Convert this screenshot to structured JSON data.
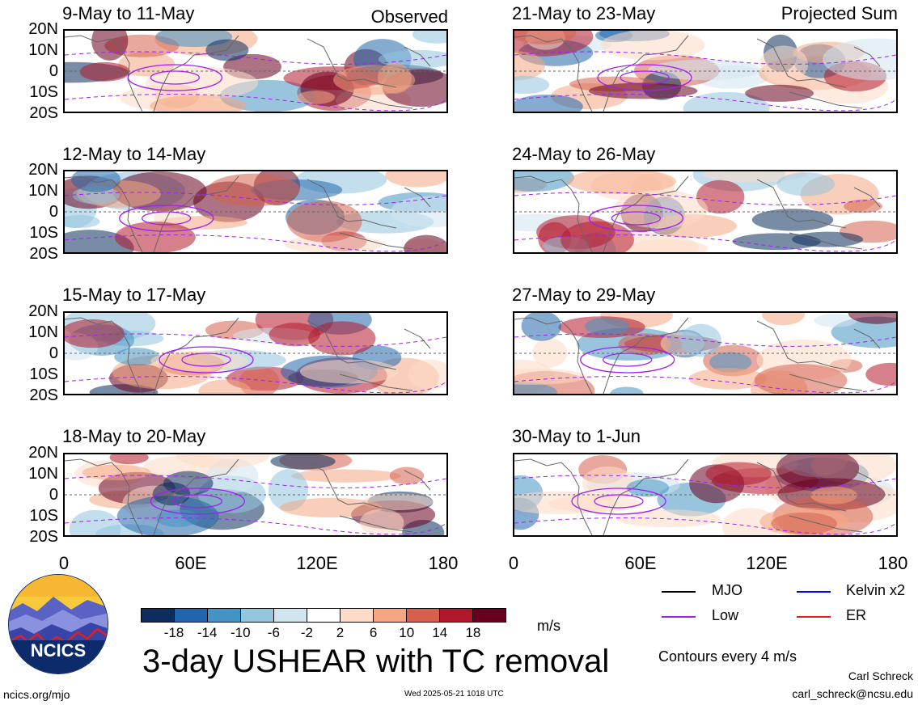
{
  "panels": [
    {
      "title": "9-May to 11-May",
      "tag": "Observed"
    },
    {
      "title": "21-May to 23-May",
      "tag": "Projected Sum"
    },
    {
      "title": "12-May to 14-May",
      "tag": ""
    },
    {
      "title": "24-May to 26-May",
      "tag": ""
    },
    {
      "title": "15-May to 17-May",
      "tag": ""
    },
    {
      "title": "27-May to 29-May",
      "tag": ""
    },
    {
      "title": "18-May to 20-May",
      "tag": ""
    },
    {
      "title": "30-May to 1-Jun",
      "tag": ""
    }
  ],
  "lat_labels": [
    "20N",
    "10N",
    "0",
    "10S",
    "20S"
  ],
  "lon_labels": [
    "0",
    "60E",
    "120E",
    "180"
  ],
  "colorbar": {
    "colors": [
      "#0b2e5c",
      "#2166ac",
      "#4393c3",
      "#92c5de",
      "#d1e5f0",
      "#ffffff",
      "#fddbc7",
      "#f4a582",
      "#d6604d",
      "#b2182b",
      "#67001f"
    ],
    "ticks": [
      "-18",
      "-14",
      "-10",
      "-6",
      "-2",
      "2",
      "6",
      "10",
      "14",
      "18"
    ],
    "units": "m/s"
  },
  "legend": {
    "items": [
      {
        "label": "MJO",
        "color": "#000000"
      },
      {
        "label": "Kelvin x2",
        "color": "#0000ff"
      },
      {
        "label": "Low",
        "color": "#a020f0"
      },
      {
        "label": "ER",
        "color": "#e41a1c"
      }
    ],
    "contour_note": "Contours every 4 m/s"
  },
  "main_title": "3-day USHEAR with TC removal",
  "logo_text": "NCICS",
  "footer": {
    "url": "ncics.org/mjo",
    "timestamp": "Wed 2025-05-21 1018 UTC",
    "author": "Carl Schreck",
    "email": "carl_schreck@ncsu.edu"
  }
}
